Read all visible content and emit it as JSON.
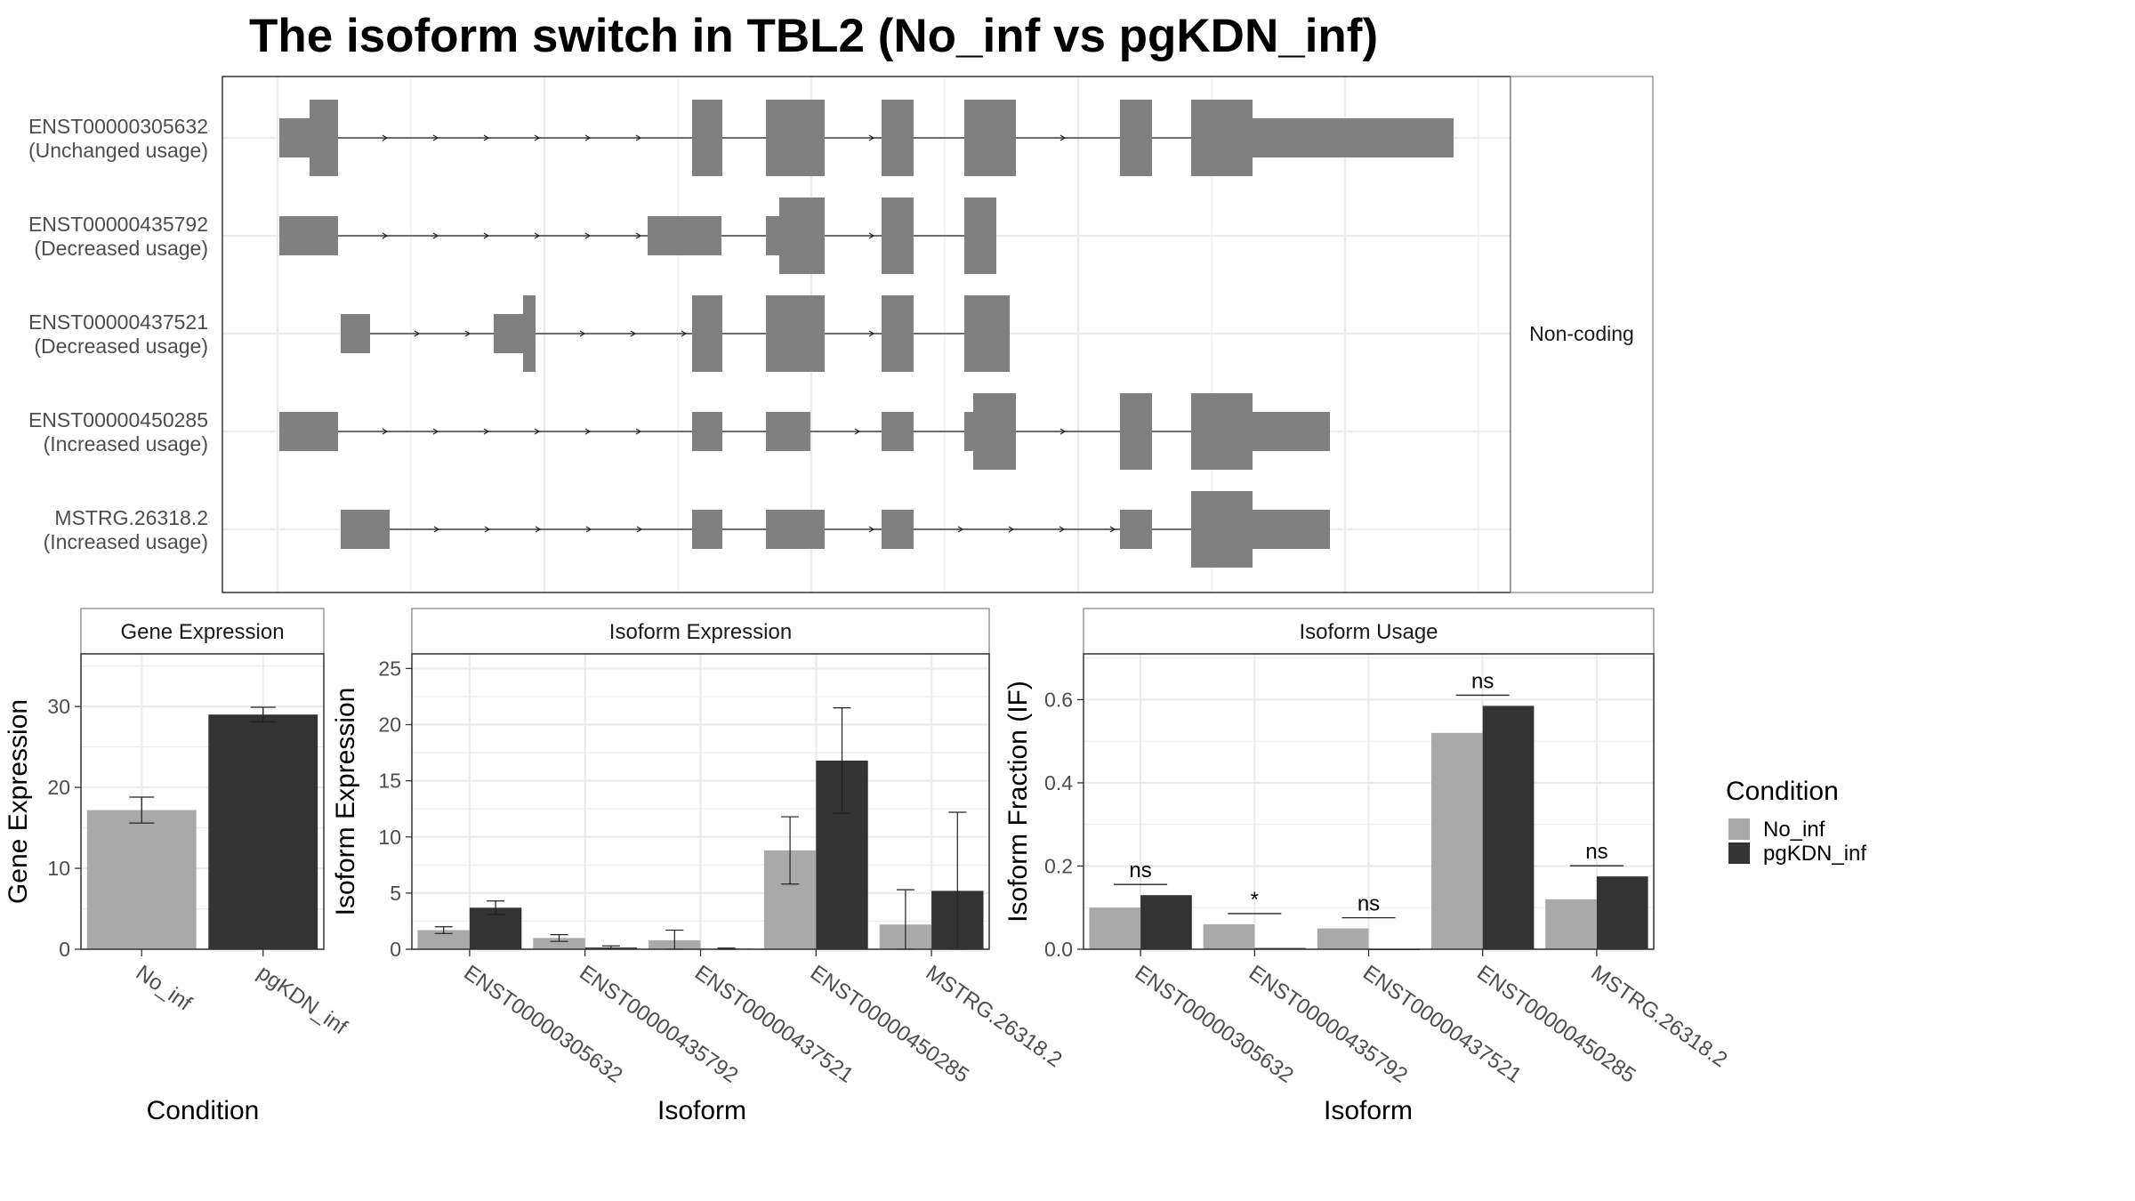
{
  "title": "The isoform switch in TBL2 (No_inf vs pgKDN_inf)",
  "colors": {
    "no_inf": "#a9a9a9",
    "pgkdn_inf": "#333333",
    "exon": "#808080",
    "grid": "#ebebeb",
    "panel_border": "#333333",
    "strip_border": "#7f7f7f"
  },
  "structure_panel": {
    "facet_label": "Non-coding",
    "transcripts": [
      {
        "id": "ENST00000305632",
        "usage": "(Unchanged usage)"
      },
      {
        "id": "ENST00000435792",
        "usage": "(Decreased usage)"
      },
      {
        "id": "ENST00000437521",
        "usage": "(Decreased usage)"
      },
      {
        "id": "ENST00000450285",
        "usage": "(Increased usage)"
      },
      {
        "id": "MSTRG.26318.2",
        "usage": "(Increased usage)"
      }
    ]
  },
  "legend": {
    "title": "Condition",
    "items": [
      "No_inf",
      "pgKDN_inf"
    ]
  },
  "chart_data": [
    {
      "type": "bar",
      "strip": "Gene Expression",
      "xlabel": "Condition",
      "ylabel": "Gene Expression",
      "categories": [
        "No_inf",
        "pgKDN_inf"
      ],
      "values": [
        17.2,
        29.0
      ],
      "errors": [
        [
          15.6,
          18.8
        ],
        [
          28.1,
          29.9
        ]
      ],
      "yticks": [
        "0",
        "10",
        "20",
        "30"
      ],
      "ylim": [
        0,
        36.5
      ]
    },
    {
      "type": "bar",
      "strip": "Isoform Expression",
      "xlabel": "Isoform",
      "ylabel": "Isoform Expression",
      "categories": [
        "ENST00000305632",
        "ENST00000435792",
        "ENST00000437521",
        "ENST00000450285",
        "MSTRG.26318.2"
      ],
      "series": [
        {
          "name": "No_inf",
          "values": [
            1.7,
            1.0,
            0.8,
            8.8,
            2.2
          ],
          "errors": [
            [
              1.4,
              2.0
            ],
            [
              0.7,
              1.3
            ],
            [
              0.0,
              1.7
            ],
            [
              5.8,
              11.8
            ],
            [
              0.0,
              5.3
            ]
          ]
        },
        {
          "name": "pgKDN_inf",
          "values": [
            3.7,
            0.15,
            0.05,
            16.8,
            5.2
          ],
          "errors": [
            [
              3.1,
              4.3
            ],
            [
              0.05,
              0.3
            ],
            [
              0.0,
              0.1
            ],
            [
              12.1,
              21.5
            ],
            [
              0.0,
              12.2
            ]
          ]
        }
      ],
      "yticks": [
        "0",
        "5",
        "10",
        "15",
        "20",
        "25"
      ],
      "ylim": [
        0,
        26.3
      ]
    },
    {
      "type": "bar",
      "strip": "Isoform Usage",
      "xlabel": "Isoform",
      "ylabel": "Isoform Fraction (IF)",
      "categories": [
        "ENST00000305632",
        "ENST00000435792",
        "ENST00000437521",
        "ENST00000450285",
        "MSTRG.26318.2"
      ],
      "series": [
        {
          "name": "No_inf",
          "values": [
            0.1,
            0.06,
            0.05,
            0.52,
            0.12
          ]
        },
        {
          "name": "pgKDN_inf",
          "values": [
            0.13,
            0.003,
            0.0,
            0.585,
            0.175
          ]
        }
      ],
      "significance": [
        "ns",
        "*",
        "ns",
        "ns",
        "ns"
      ],
      "yticks": [
        "0.0",
        "0.2",
        "0.4",
        "0.6"
      ],
      "ylim": [
        0,
        0.71
      ]
    }
  ]
}
